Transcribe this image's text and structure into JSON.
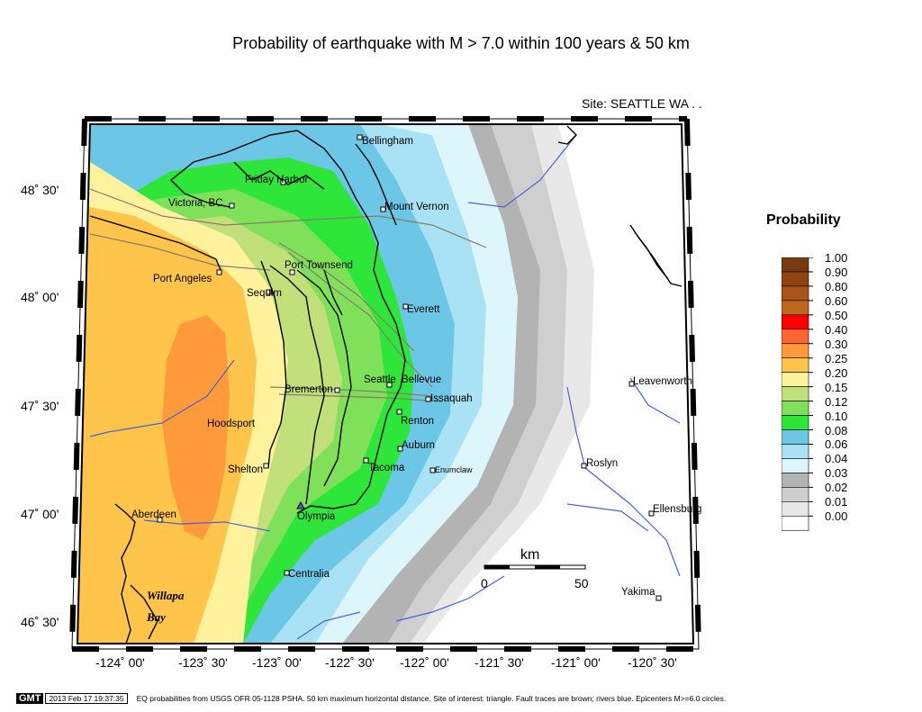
{
  "title": "Probability of earthquake with M > 7.0 within 100 years & 50 km",
  "site_label": "Site: SEATTLE  WA . .",
  "y_ticks": [
    "48˚ 30'",
    "48˚ 00'",
    "47˚ 30'",
    "47˚ 00'",
    "46˚ 30'"
  ],
  "x_ticks": [
    "-124˚ 00'",
    "-123˚ 30'",
    "-123˚ 00'",
    "-122˚ 30'",
    "-122˚ 00'",
    "-121˚ 30'",
    "-121˚ 00'",
    "-120˚ 30'"
  ],
  "cities": [
    "Bellingham",
    "Friday Harbor",
    "Victoria, BC",
    "Mount Vernon",
    "Port Townsend",
    "Port Angeles",
    "Sequim",
    "Everett",
    "Seattle",
    "Bellevue",
    "Bremerton",
    "Issaquah",
    "Renton",
    "Hoodsport",
    "Auburn",
    "Tacoma",
    "Enumclaw",
    "Shelton",
    "Roslyn",
    "Aberdeen",
    "Olympia",
    "Ellensburg",
    "Leavenworth",
    "Centralia",
    "Yakima"
  ],
  "place_labels": [
    "Willapa",
    "Bay"
  ],
  "scalebar": {
    "unit": "km",
    "start": "0",
    "end": "50"
  },
  "legend": {
    "title": "Probability",
    "labels": [
      "1.00",
      "0.90",
      "0.80",
      "0.60",
      "0.50",
      "0.40",
      "0.30",
      "0.25",
      "0.20",
      "0.15",
      "0.12",
      "0.10",
      "0.08",
      "0.06",
      "0.04",
      "0.03",
      "0.02",
      "0.01",
      "0.00"
    ],
    "colors": [
      "#7a3a10",
      "#8e4512",
      "#a85418",
      "#c0651e",
      "#ff0000",
      "#ff6633",
      "#ff9a3a",
      "#ffc44a",
      "#fff29c",
      "#c2e07a",
      "#7fe05a",
      "#2ee53a",
      "#6cc6e6",
      "#a8e2f4",
      "#ddf6fb",
      "#b3b3b3",
      "#cfcfcf",
      "#e8e8e8",
      "#ffffff"
    ]
  },
  "footer": {
    "logo": "GMT",
    "timestamp": "2013 Feb 17 19:37:35",
    "caption": "EQ probabilities from USGS OFR 05-1128 PSHA. 50 km maximum horizontal distance. Site of interest: triangle.  Fault traces are brown; rivers blue.  Epicenters M>=6.0 circles."
  },
  "colors": {
    "coast": "#000000",
    "fault": "#8a7b6a",
    "river": "#4a62d8"
  }
}
